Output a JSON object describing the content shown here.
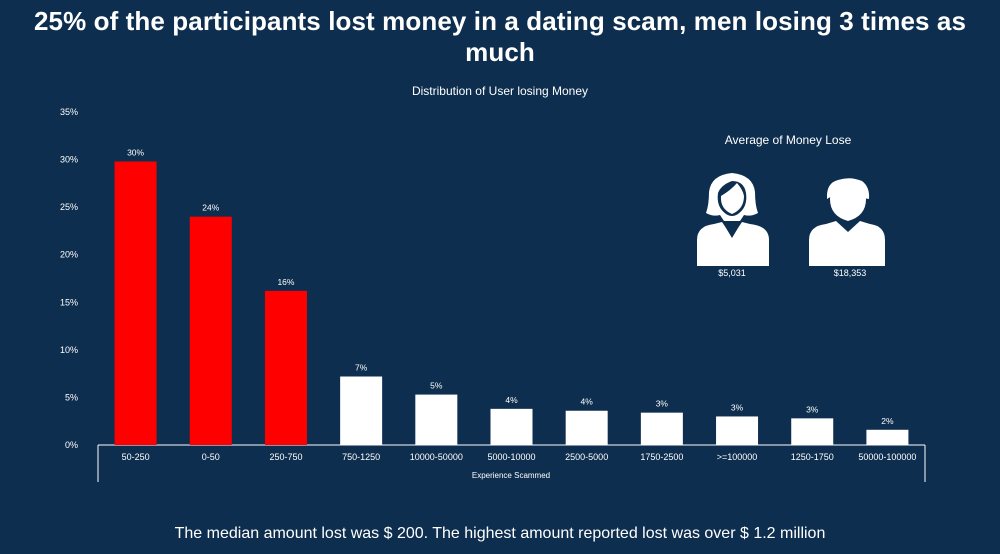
{
  "headline": "25% of the participants lost money in a dating scam, men losing 3 times as much",
  "footer": "The median amount lost was $ 200. The highest amount reported lost was over $ 1.2 million",
  "chart_data": {
    "type": "bar",
    "title": "Distribution of User losing Money",
    "xlabel": "Experience Scammed",
    "ylabel": "",
    "ylim": [
      0,
      35
    ],
    "yticks": [
      "0%",
      "5%",
      "10%",
      "15%",
      "20%",
      "25%",
      "30%",
      "35%"
    ],
    "categories": [
      "50-250",
      "0-50",
      "250-750",
      "750-1250",
      "10000-50000",
      "5000-10000",
      "2500-5000",
      "1750-2500",
      ">=100000",
      "1250-1750",
      "50000-100000"
    ],
    "values": [
      29.8,
      24.0,
      16.2,
      7.2,
      5.3,
      3.8,
      3.6,
      3.4,
      3.0,
      2.8,
      1.6
    ],
    "data_labels": [
      "30%",
      "24%",
      "16%",
      "7%",
      "5%",
      "4%",
      "4%",
      "3%",
      "3%",
      "3%",
      "2%"
    ],
    "highlight_color": "#ff0000",
    "bar_color": "#ffffff",
    "highlighted_categories": [
      "50-250",
      "0-50",
      "250-750"
    ],
    "grid": false,
    "legend": "none"
  },
  "average": {
    "title": "Average of Money Lose",
    "female": {
      "icon": "female-user-icon",
      "value": "$5,031"
    },
    "male": {
      "icon": "male-user-icon",
      "value": "$18,353"
    }
  },
  "colors": {
    "background": "#0d2e4e",
    "accent": "#ff0000",
    "text": "#ffffff"
  }
}
